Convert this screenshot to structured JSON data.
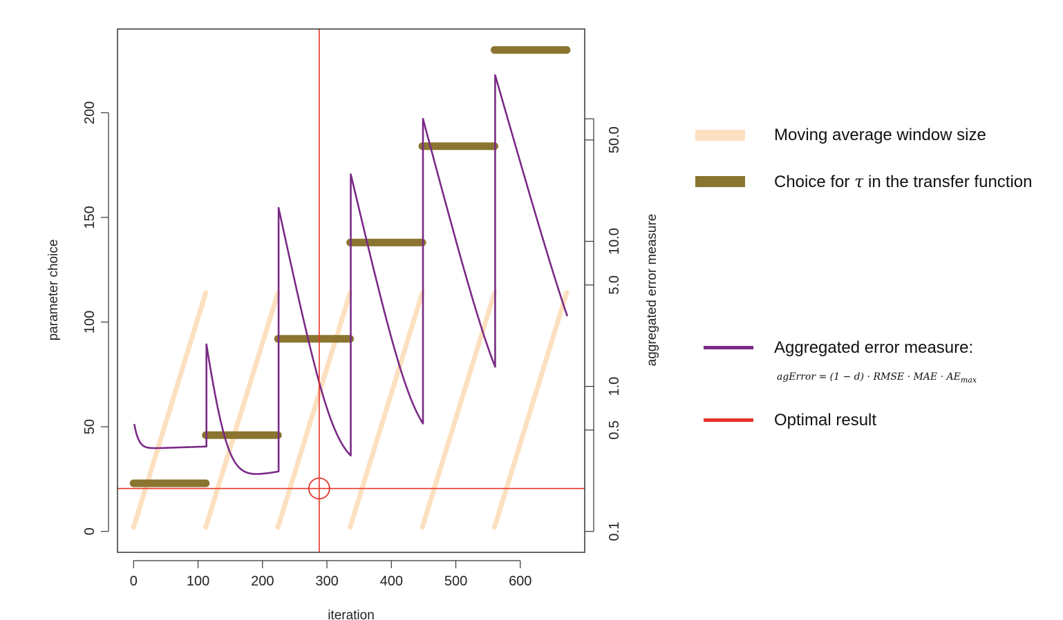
{
  "chart_data": {
    "type": "line",
    "xlabel": "iteration",
    "ylabel": "parameter choice",
    "y2label": "aggregated error measure",
    "xlim": [
      -25,
      700
    ],
    "ylim": [
      -10,
      240
    ],
    "y2_scale": "log",
    "y2_ticks": [
      0.1,
      0.5,
      1.0,
      5.0,
      10.0,
      50.0
    ],
    "y2_tick_labels": [
      "0.1",
      "0.5",
      "1.0",
      "5.0",
      "10.0",
      "50.0"
    ],
    "x_ticks": [
      0,
      100,
      200,
      300,
      400,
      500,
      600
    ],
    "y_ticks": [
      0,
      50,
      100,
      150,
      200
    ],
    "colors": {
      "window": "#fce0c0",
      "tau": "#8a7430",
      "error": "#7a2a86",
      "optimal": "#e53428"
    },
    "series": [
      {
        "name": "Moving average window size",
        "axis": "left",
        "segments": [
          {
            "x": [
              0,
              112
            ],
            "y": [
              2,
              114
            ]
          },
          {
            "x": [
              112,
              224
            ],
            "y": [
              2,
              114
            ]
          },
          {
            "x": [
              224,
              336
            ],
            "y": [
              2,
              114
            ]
          },
          {
            "x": [
              336,
              448
            ],
            "y": [
              2,
              114
            ]
          },
          {
            "x": [
              448,
              560
            ],
            "y": [
              2,
              114
            ]
          },
          {
            "x": [
              560,
              672
            ],
            "y": [
              2,
              114
            ]
          }
        ]
      },
      {
        "name": "Choice for τ in the transfer function",
        "axis": "left",
        "segments": [
          {
            "x": [
              0,
              112
            ],
            "y": 23
          },
          {
            "x": [
              112,
              224
            ],
            "y": 46
          },
          {
            "x": [
              224,
              336
            ],
            "y": 92
          },
          {
            "x": [
              336,
              448
            ],
            "y": 138
          },
          {
            "x": [
              448,
              560
            ],
            "y": 184
          },
          {
            "x": [
              560,
              672
            ],
            "y": 230
          }
        ]
      },
      {
        "name": "Aggregated error measure",
        "axis": "right",
        "segments": [
          {
            "start": 0,
            "end": 112,
            "peak": 0.55,
            "base": 0.37,
            "decay": 6,
            "drift": 0.04
          },
          {
            "start": 112,
            "end": 224,
            "peak": 1.95,
            "base": 0.205,
            "decay": 14,
            "drift": 0.26
          },
          {
            "start": 224,
            "end": 336,
            "peak": 17.0,
            "base": 0.2,
            "decay": 21,
            "drift": 0.26
          },
          {
            "start": 336,
            "end": 448,
            "peak": 29.0,
            "base": 0.265,
            "decay": 23,
            "drift": 0.26
          },
          {
            "start": 448,
            "end": 560,
            "peak": 70.0,
            "base": 0.37,
            "decay": 26,
            "drift": 0.15
          },
          {
            "start": 560,
            "end": 672,
            "peak": 140.0,
            "base": 0.49,
            "decay": 28,
            "drift": 0.0
          }
        ]
      },
      {
        "name": "Optimal result",
        "axis": "left",
        "optimum": {
          "x": 288,
          "y": 20.5
        }
      }
    ]
  },
  "legend": {
    "window_label": "Moving average window size",
    "tau_label_prefix": "Choice for ",
    "tau_symbol": "τ",
    "tau_label_suffix": " in the transfer function",
    "error_label": "Aggregated error measure:",
    "error_formula": "agError = (1 − d) · RMSE · MAE · AE",
    "error_formula_sub": "max",
    "optimal_label": "Optimal result"
  }
}
